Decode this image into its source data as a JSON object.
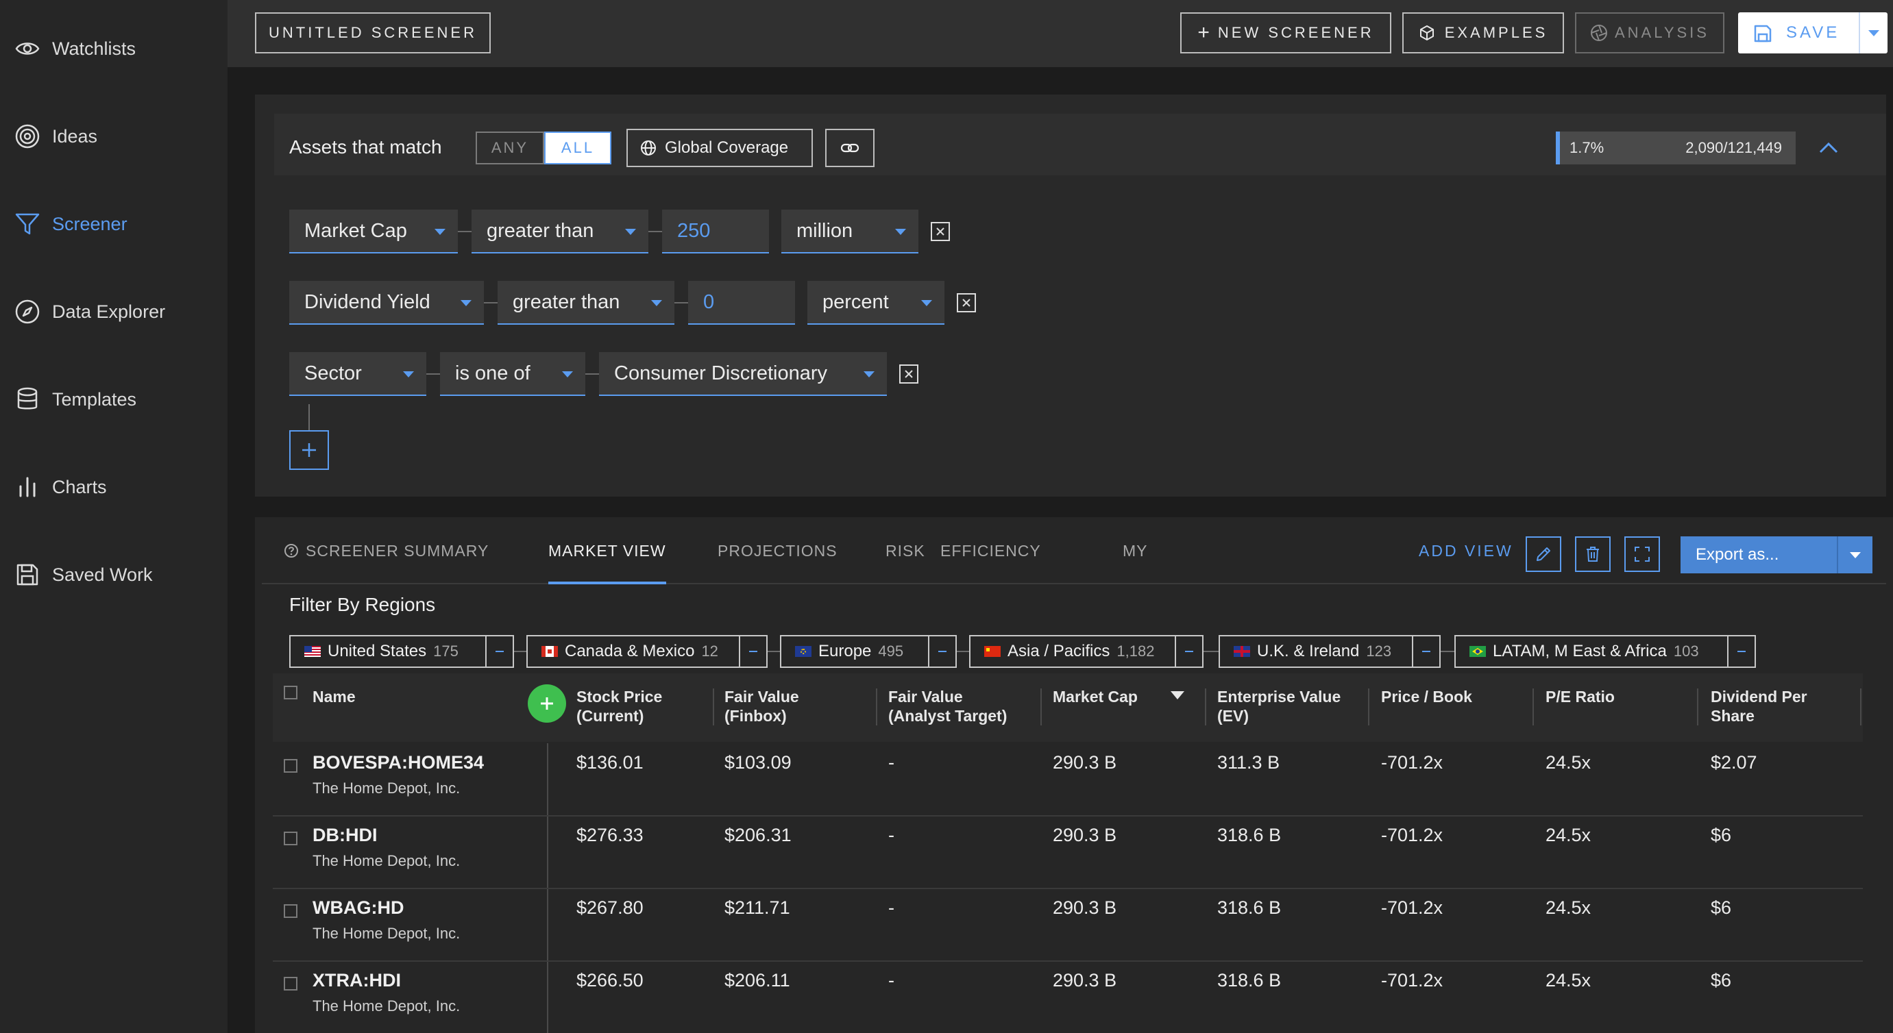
{
  "sidebar": {
    "items": [
      {
        "label": "Watchlists",
        "icon": "eye-icon"
      },
      {
        "label": "Ideas",
        "icon": "target-icon"
      },
      {
        "label": "Screener",
        "icon": "funnel-icon",
        "active": true
      },
      {
        "label": "Data Explorer",
        "icon": "compass-icon"
      },
      {
        "label": "Templates",
        "icon": "database-icon"
      },
      {
        "label": "Charts",
        "icon": "bar-chart-icon"
      },
      {
        "label": "Saved Work",
        "icon": "save-icon"
      }
    ]
  },
  "topbar": {
    "title": "UNTITLED SCREENER",
    "new_screener": "NEW SCREENER",
    "examples": "EXAMPLES",
    "analysis": "ANALYSIS",
    "save": "SAVE"
  },
  "filter_panel": {
    "assets_label": "Assets that match",
    "any": "ANY",
    "all": "ALL",
    "coverage": "Global Coverage",
    "match_percent": "1.7%",
    "match_fraction": 0.017,
    "match_count": "2,090/121,449",
    "rules": [
      {
        "field": "Market Cap",
        "operator": "greater than",
        "value": "250",
        "unit": "million"
      },
      {
        "field": "Dividend Yield",
        "operator": "greater than",
        "value": "0",
        "unit": "percent"
      },
      {
        "field": "Sector",
        "operator": "is one of",
        "value": "Consumer Discretionary"
      }
    ]
  },
  "results": {
    "tabs": [
      "SCREENER SUMMARY",
      "MARKET VIEW",
      "PROJECTIONS",
      "RISK",
      "EFFICIENCY",
      "MY"
    ],
    "active_tab": "MARKET VIEW",
    "add_view": "ADD VIEW",
    "export": "Export as...",
    "filter_title": "Filter By Regions",
    "regions": [
      {
        "name": "United States",
        "count": "175"
      },
      {
        "name": "Canada & Mexico",
        "count": "12"
      },
      {
        "name": "Europe",
        "count": "495"
      },
      {
        "name": "Asia / Pacifics",
        "count": "1,182"
      },
      {
        "name": "U.K. & Ireland",
        "count": "123"
      },
      {
        "name": "LATAM, M East & Africa",
        "count": "103"
      }
    ],
    "columns": {
      "name": "Name",
      "price": [
        "Stock Price",
        "(Current)"
      ],
      "fv_finbox": [
        "Fair Value",
        "(Finbox)"
      ],
      "fv_analyst": [
        "Fair Value",
        "(Analyst Target)"
      ],
      "mcap": "Market Cap",
      "ev": [
        "Enterprise Value",
        "(EV)"
      ],
      "pb": "Price / Book",
      "pe": "P/E Ratio",
      "dps": [
        "Dividend Per",
        "Share"
      ]
    },
    "rows": [
      {
        "symbol": "BOVESPA:HOME34",
        "company": "The Home Depot, Inc.",
        "price": "$136.01",
        "fv_finbox": "$103.09",
        "fv_analyst": "-",
        "mcap": "290.3 B",
        "ev": "311.3 B",
        "pb": "-701.2x",
        "pe": "24.5x",
        "dps": "$2.07"
      },
      {
        "symbol": "DB:HDI",
        "company": "The Home Depot, Inc.",
        "price": "$276.33",
        "fv_finbox": "$206.31",
        "fv_analyst": "-",
        "mcap": "290.3 B",
        "ev": "318.6 B",
        "pb": "-701.2x",
        "pe": "24.5x",
        "dps": "$6"
      },
      {
        "symbol": "WBAG:HD",
        "company": "The Home Depot, Inc.",
        "price": "$267.80",
        "fv_finbox": "$211.71",
        "fv_analyst": "-",
        "mcap": "290.3 B",
        "ev": "318.6 B",
        "pb": "-701.2x",
        "pe": "24.5x",
        "dps": "$6"
      },
      {
        "symbol": "XTRA:HDI",
        "company": "The Home Depot, Inc.",
        "price": "$266.50",
        "fv_finbox": "$206.11",
        "fv_analyst": "-",
        "mcap": "290.3 B",
        "ev": "318.6 B",
        "pb": "-701.2x",
        "pe": "24.5x",
        "dps": "$6"
      }
    ]
  },
  "colors": {
    "accent": "#5b9cf0",
    "add_column": "#3fbf4f",
    "export": "#4a86d4"
  }
}
